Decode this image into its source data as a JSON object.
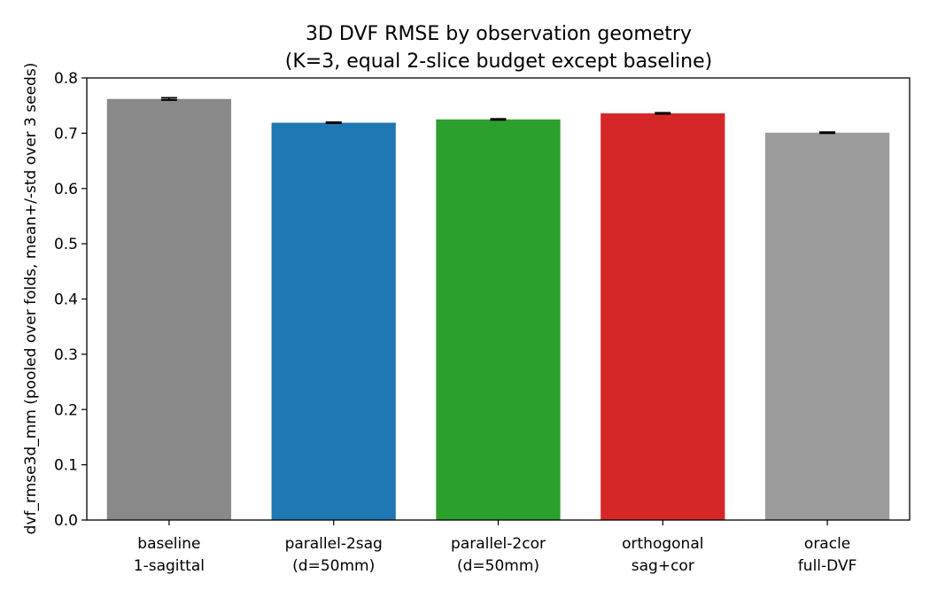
{
  "chart_data": {
    "type": "bar",
    "title": "3D DVF RMSE by observation geometry",
    "subtitle": "(K=3, equal 2-slice budget except baseline)",
    "xlabel": "",
    "ylabel": "dvf_rmse3d_mm (pooled over folds, mean+/-std over 3 seeds)",
    "ylim": [
      0.0,
      0.8
    ],
    "yticks": [
      "0.0",
      "0.1",
      "0.2",
      "0.3",
      "0.4",
      "0.5",
      "0.6",
      "0.7",
      "0.8"
    ],
    "grid": false,
    "categories": [
      {
        "line1": "baseline",
        "line2": "1-sagittal"
      },
      {
        "line1": "parallel-2sag",
        "line2": "(d=50mm)"
      },
      {
        "line1": "parallel-2cor",
        "line2": "(d=50mm)"
      },
      {
        "line1": "orthogonal",
        "line2": "sag+cor"
      },
      {
        "line1": "oracle",
        "line2": "full-DVF"
      }
    ],
    "values": [
      0.762,
      0.719,
      0.725,
      0.736,
      0.701
    ],
    "errors": [
      0.002,
      0.001,
      0.001,
      0.001,
      0.001
    ],
    "colors": [
      "#898989",
      "#1f77b4",
      "#2ca02c",
      "#d62728",
      "#9b9b9b"
    ]
  }
}
